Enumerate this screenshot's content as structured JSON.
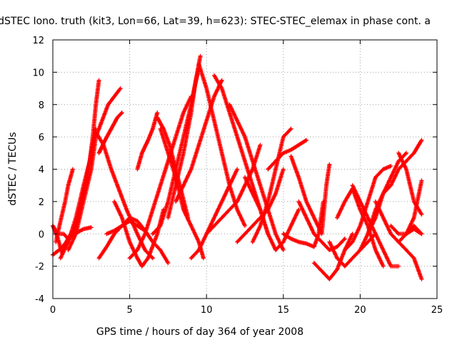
{
  "chart_data": {
    "type": "scatter",
    "title": "dSTEC Iono. truth (kit3, Lon=66, Lat=39, h=623): STEC-STEC_elemax in phase cont. a",
    "xlabel": "GPS time / hours of day 364 of year 2008",
    "ylabel": "dSTEC  / TECUs",
    "xlim": [
      0,
      25
    ],
    "ylim": [
      -4,
      12
    ],
    "xticks": [
      0,
      5,
      10,
      15,
      20,
      25
    ],
    "yticks": [
      -4,
      -2,
      0,
      2,
      4,
      6,
      8,
      10,
      12
    ],
    "xtick_labels": [
      "0",
      "5",
      "10",
      "15",
      "20",
      "25"
    ],
    "ytick_labels": [
      "-4",
      "-2",
      "0",
      "2",
      "4",
      "6",
      "8",
      "10",
      "12"
    ],
    "grid": true,
    "marker": "+",
    "color": "#ff0000",
    "series": [
      {
        "x": [
          0.0,
          0.3,
          0.6,
          1.0,
          1.3
        ],
        "y": [
          0.5,
          -0.2,
          -1.2,
          -0.3,
          0.2
        ]
      },
      {
        "x": [
          0.0,
          0.4,
          0.8,
          1.2
        ],
        "y": [
          -1.3,
          -1.0,
          -0.6,
          0.0
        ]
      },
      {
        "x": [
          0.0,
          0.3,
          0.7,
          1.0,
          1.4,
          2.0,
          2.5
        ],
        "y": [
          0.5,
          0.0,
          0.0,
          -0.3,
          0.0,
          0.3,
          0.4
        ]
      },
      {
        "x": [
          0.2,
          0.5,
          0.8,
          1.0,
          1.3
        ],
        "y": [
          -0.5,
          0.8,
          2.0,
          3.0,
          4.0
        ]
      },
      {
        "x": [
          0.5,
          1.0,
          1.5,
          2.0,
          2.4,
          2.6,
          2.8,
          3.0
        ],
        "y": [
          -1.5,
          -0.5,
          1.0,
          3.0,
          4.5,
          6.0,
          8.0,
          9.5
        ]
      },
      {
        "x": [
          1.0,
          1.5,
          2.0,
          2.5,
          2.8,
          3.2,
          3.6,
          4.0,
          4.4
        ],
        "y": [
          -1.0,
          0.0,
          2.0,
          4.0,
          6.0,
          7.0,
          8.0,
          8.5,
          9.0
        ]
      },
      {
        "x": [
          1.0,
          1.5,
          2.0,
          2.5,
          2.8
        ],
        "y": [
          -0.5,
          0.5,
          2.5,
          5.0,
          6.5
        ]
      },
      {
        "x": [
          2.8,
          3.3,
          3.8,
          4.2,
          4.8,
          5.5,
          6.0,
          6.5
        ],
        "y": [
          6.3,
          5.5,
          4.0,
          3.0,
          1.5,
          0.0,
          -1.0,
          -1.5
        ]
      },
      {
        "x": [
          3.0,
          3.5,
          4.0,
          4.5,
          5.0,
          5.5,
          6.0
        ],
        "y": [
          -1.5,
          -0.8,
          0.0,
          0.5,
          0.8,
          0.5,
          0.2
        ]
      },
      {
        "x": [
          3.0,
          3.4,
          3.8,
          4.2,
          4.5
        ],
        "y": [
          5.0,
          5.8,
          6.5,
          7.2,
          7.5
        ]
      },
      {
        "x": [
          3.5,
          4.0,
          4.5,
          5.0,
          5.5,
          6.0,
          6.5,
          7.0,
          7.5
        ],
        "y": [
          0.0,
          0.2,
          0.5,
          1.0,
          0.8,
          0.2,
          -0.5,
          -1.0,
          -1.8
        ]
      },
      {
        "x": [
          4.0,
          4.5,
          5.0,
          5.5,
          5.8,
          6.2,
          6.8,
          7.2
        ],
        "y": [
          2.0,
          1.0,
          -0.5,
          -1.5,
          -2.0,
          -1.5,
          0.0,
          1.5
        ]
      },
      {
        "x": [
          5.0,
          5.5,
          6.0,
          6.5,
          7.0,
          7.5,
          8.0,
          8.5,
          9.0
        ],
        "y": [
          -1.5,
          -1.0,
          0.0,
          1.5,
          3.0,
          4.5,
          6.0,
          7.5,
          8.5
        ]
      },
      {
        "x": [
          5.5,
          5.8,
          6.2,
          6.5,
          6.8
        ],
        "y": [
          4.0,
          5.0,
          5.8,
          6.5,
          7.5
        ]
      },
      {
        "x": [
          6.5,
          7.0,
          7.5,
          8.0,
          8.5,
          9.0,
          9.2,
          9.5
        ],
        "y": [
          0.0,
          0.5,
          2.0,
          4.0,
          6.0,
          8.0,
          9.0,
          10.2
        ]
      },
      {
        "x": [
          6.8,
          7.2,
          7.6,
          8.0,
          8.4,
          8.8
        ],
        "y": [
          7.2,
          6.5,
          5.5,
          4.0,
          2.5,
          1.0
        ]
      },
      {
        "x": [
          7.0,
          7.5,
          8.0,
          8.5,
          9.0,
          9.5,
          9.8
        ],
        "y": [
          6.5,
          5.0,
          3.5,
          1.5,
          0.5,
          -0.5,
          -1.5
        ]
      },
      {
        "x": [
          7.5,
          8.0,
          8.5,
          9.0,
          9.3,
          9.6
        ],
        "y": [
          1.0,
          3.0,
          5.0,
          7.5,
          9.5,
          11.0
        ]
      },
      {
        "x": [
          8.0,
          8.5,
          9.0,
          9.5,
          10.0,
          10.5,
          11.0
        ],
        "y": [
          2.0,
          3.0,
          4.0,
          5.5,
          7.0,
          8.5,
          9.5
        ]
      },
      {
        "x": [
          9.5,
          10.0,
          10.5,
          11.0,
          11.5,
          12.0,
          12.5
        ],
        "y": [
          10.5,
          9.0,
          7.0,
          5.0,
          3.0,
          1.5,
          0.5
        ]
      },
      {
        "x": [
          9.0,
          9.5,
          10.0,
          10.5,
          11.0,
          11.5,
          12.0
        ],
        "y": [
          -1.5,
          -1.0,
          0.0,
          1.0,
          2.0,
          3.0,
          4.0
        ]
      },
      {
        "x": [
          10.0,
          10.5,
          11.0,
          11.5,
          12.0,
          12.5,
          13.0,
          13.5
        ],
        "y": [
          0.0,
          0.5,
          1.0,
          1.5,
          2.0,
          3.0,
          4.0,
          5.5
        ]
      },
      {
        "x": [
          10.5,
          11.0,
          11.5,
          12.0,
          12.5,
          13.0,
          13.5,
          14.0
        ],
        "y": [
          9.8,
          9.0,
          7.5,
          6.0,
          4.5,
          3.0,
          1.5,
          0.0
        ]
      },
      {
        "x": [
          11.5,
          12.0,
          12.5,
          13.0,
          13.5,
          14.0,
          14.5,
          15.0
        ],
        "y": [
          8.0,
          7.0,
          6.0,
          4.5,
          3.0,
          1.5,
          0.0,
          -1.0
        ]
      },
      {
        "x": [
          12.0,
          12.5,
          13.0,
          13.5,
          14.0,
          14.5,
          15.0
        ],
        "y": [
          -0.5,
          0.0,
          0.5,
          1.0,
          1.5,
          2.5,
          4.0
        ]
      },
      {
        "x": [
          12.5,
          13.0,
          13.5,
          14.0,
          14.5,
          15.0,
          15.5,
          16.0
        ],
        "y": [
          3.5,
          2.5,
          1.5,
          0.0,
          -1.0,
          -0.5,
          0.5,
          1.5
        ]
      },
      {
        "x": [
          13.0,
          13.5,
          14.0,
          14.5,
          15.0,
          15.5
        ],
        "y": [
          -0.5,
          0.5,
          2.0,
          4.0,
          6.0,
          6.5
        ]
      },
      {
        "x": [
          14.0,
          14.5,
          15.0,
          15.5,
          16.0,
          16.5
        ],
        "y": [
          4.0,
          4.5,
          5.0,
          5.2,
          5.5,
          5.8
        ]
      },
      {
        "x": [
          15.0,
          15.5,
          16.0,
          16.5,
          17.0,
          17.3,
          17.6
        ],
        "y": [
          0.0,
          -0.3,
          -0.5,
          -0.6,
          -0.8,
          0.0,
          2.0
        ]
      },
      {
        "x": [
          15.5,
          16.0,
          16.5,
          17.0,
          17.5,
          17.8,
          18.0
        ],
        "y": [
          4.8,
          3.5,
          2.0,
          1.0,
          0.0,
          3.0,
          4.3
        ]
      },
      {
        "x": [
          16.0,
          16.5,
          17.0,
          17.5,
          18.0,
          18.5,
          19.0
        ],
        "y": [
          2.0,
          1.0,
          0.0,
          -0.5,
          -1.0,
          -0.8,
          -0.3
        ]
      },
      {
        "x": [
          17.0,
          17.5,
          18.0,
          18.5,
          19.0,
          19.5
        ],
        "y": [
          -1.8,
          -2.3,
          -2.8,
          -2.2,
          -1.0,
          0.0
        ]
      },
      {
        "x": [
          18.0,
          18.5,
          19.0,
          19.5,
          20.0,
          20.5,
          21.0
        ],
        "y": [
          -0.5,
          -1.5,
          -2.0,
          -1.5,
          -1.0,
          -0.5,
          0.0
        ]
      },
      {
        "x": [
          18.5,
          19.0,
          19.5,
          20.0,
          20.5,
          21.0,
          21.5
        ],
        "y": [
          1.0,
          2.0,
          2.8,
          1.5,
          0.5,
          -1.0,
          -2.0
        ]
      },
      {
        "x": [
          19.0,
          19.5,
          20.0,
          20.5,
          21.0,
          21.5,
          22.0
        ],
        "y": [
          -1.0,
          -0.5,
          0.5,
          2.0,
          3.5,
          4.0,
          4.2
        ]
      },
      {
        "x": [
          19.5,
          20.0,
          20.5,
          21.0,
          21.5,
          22.0,
          22.5
        ],
        "y": [
          3.0,
          2.0,
          1.0,
          0.0,
          -1.0,
          -2.0,
          -2.0
        ]
      },
      {
        "x": [
          20.0,
          20.5,
          21.0,
          21.5,
          22.0,
          22.5,
          23.0
        ],
        "y": [
          -1.0,
          0.0,
          1.0,
          2.5,
          3.5,
          4.5,
          5.0
        ]
      },
      {
        "x": [
          20.5,
          21.0,
          21.5,
          22.0,
          22.5,
          23.0,
          23.5,
          24.0
        ],
        "y": [
          0.0,
          1.5,
          2.5,
          3.0,
          4.0,
          4.5,
          5.0,
          5.8
        ]
      },
      {
        "x": [
          21.0,
          21.5,
          22.0,
          22.5,
          23.0,
          23.5,
          24.0
        ],
        "y": [
          2.0,
          1.0,
          0.0,
          -0.5,
          0.0,
          0.5,
          0.0
        ]
      },
      {
        "x": [
          22.0,
          22.5,
          23.0,
          23.5,
          24.0
        ],
        "y": [
          0.5,
          0.0,
          0.0,
          0.3,
          0.0
        ]
      },
      {
        "x": [
          22.5,
          23.0,
          23.5,
          24.0
        ],
        "y": [
          -0.5,
          -1.0,
          -1.5,
          -2.8
        ]
      },
      {
        "x": [
          23.0,
          23.5,
          24.0
        ],
        "y": [
          0.0,
          1.0,
          3.3
        ]
      },
      {
        "x": [
          22.5,
          23.0,
          23.5,
          24.0
        ],
        "y": [
          5.0,
          4.0,
          2.0,
          1.2
        ]
      }
    ]
  }
}
